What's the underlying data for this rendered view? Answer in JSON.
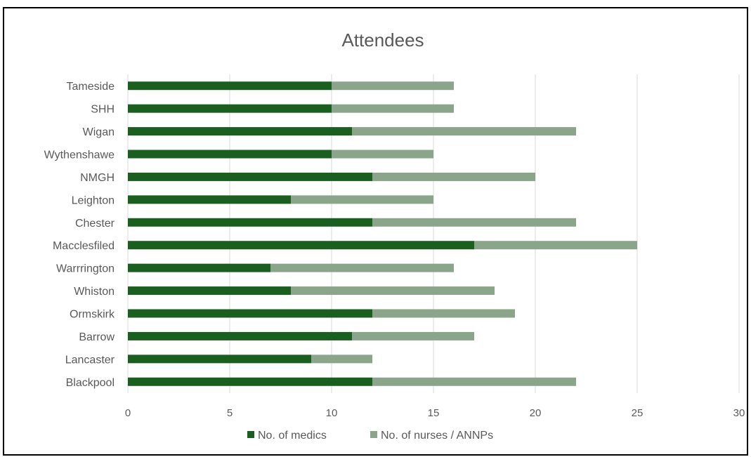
{
  "chart_data": {
    "type": "bar",
    "orientation": "horizontal",
    "stacked": true,
    "title": "Attendees",
    "xlabel": "",
    "ylabel": "",
    "xlim": [
      0,
      30
    ],
    "x_ticks": [
      0,
      5,
      10,
      15,
      20,
      25,
      30
    ],
    "grid": true,
    "legend_position": "bottom",
    "categories": [
      "Tameside",
      "SHH",
      "Wigan",
      "Wythenshawe",
      "NMGH",
      "Leighton",
      "Chester",
      "Macclesfiled",
      "Warrrington",
      "Whiston",
      "Ormskirk",
      "Barrow",
      "Lancaster",
      "Blackpool"
    ],
    "series": [
      {
        "name": "No. of medics",
        "color": "#1a5e20",
        "values": [
          10,
          10,
          11,
          10,
          12,
          8,
          12,
          17,
          7,
          8,
          12,
          11,
          9,
          12
        ]
      },
      {
        "name": "No. of nurses / ANNPs",
        "color": "#8aa58a",
        "values": [
          6,
          6,
          11,
          5,
          8,
          7,
          10,
          8,
          9,
          10,
          7,
          6,
          3,
          10
        ]
      }
    ]
  }
}
